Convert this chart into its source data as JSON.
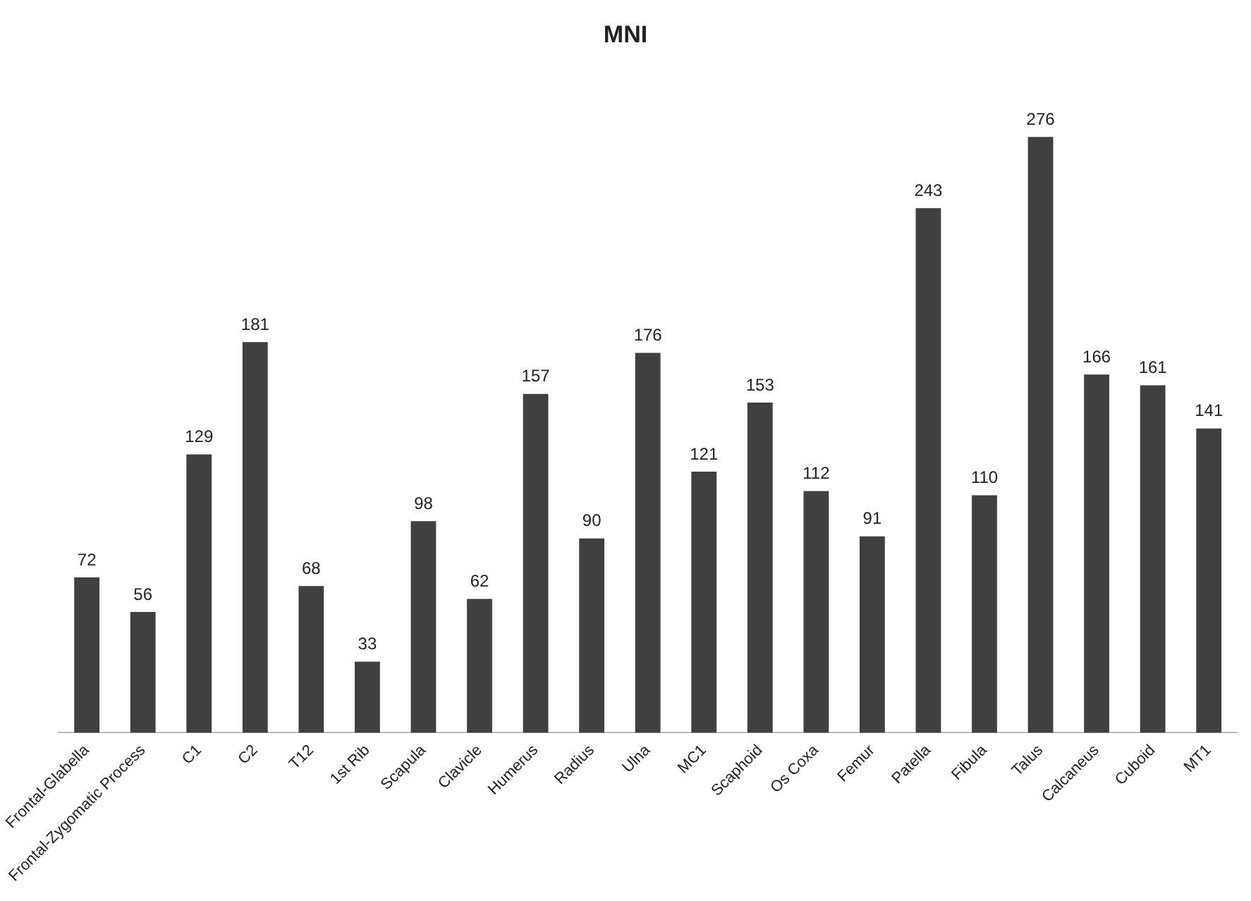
{
  "chart_data": {
    "type": "bar",
    "title": "MNI",
    "categories": [
      "Frontal-Glabella",
      "Frontal-Zygomatic Process",
      "C1",
      "C2",
      "T12",
      "1st Rib",
      "Scapula",
      "Clavicle",
      "Humerus",
      "Radius",
      "Ulna",
      "MC1",
      "Scaphoid",
      "Os Coxa",
      "Femur",
      "Patella",
      "Fibula",
      "Talus",
      "Calcaneus",
      "Cuboid",
      "MT1"
    ],
    "values": [
      72,
      56,
      129,
      181,
      68,
      33,
      98,
      62,
      157,
      90,
      176,
      121,
      153,
      112,
      91,
      243,
      110,
      276,
      166,
      161,
      141
    ],
    "color": "#404040",
    "data_labels": true,
    "grid": false,
    "legend": false
  }
}
